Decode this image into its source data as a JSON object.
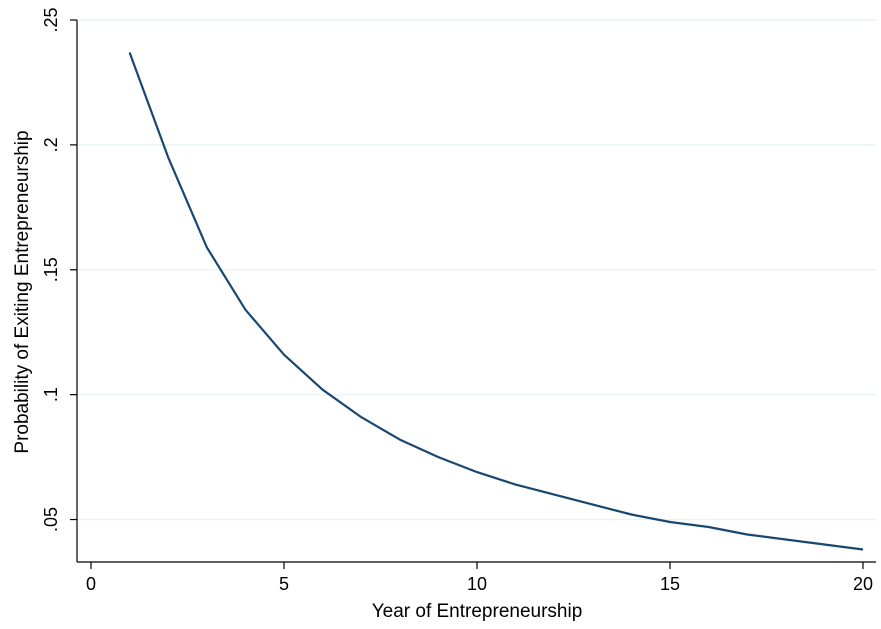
{
  "chart_data": {
    "type": "line",
    "title": "",
    "xlabel": "Year of Entrepreneurship",
    "ylabel": "Probability of Exiting Entrepreneurship",
    "xlim": [
      0,
      20
    ],
    "ylim": [
      0.033,
      0.25
    ],
    "x_ticks": [
      0,
      5,
      10,
      15,
      20
    ],
    "x_tick_labels": [
      "0",
      "5",
      "10",
      "15",
      "20"
    ],
    "y_ticks": [
      0.05,
      0.1,
      0.15,
      0.2,
      0.25
    ],
    "y_tick_labels": [
      ".05",
      ".1",
      ".15",
      ".2",
      ".25"
    ],
    "grid": "horizontal",
    "line_color": "#1a476f",
    "grid_color": "#eaf2f3",
    "x": [
      1,
      2,
      3,
      4,
      5,
      6,
      7,
      8,
      9,
      10,
      11,
      12,
      13,
      14,
      15,
      16,
      17,
      18,
      19,
      20
    ],
    "series": [
      {
        "values": [
          0.237,
          0.195,
          0.159,
          0.134,
          0.116,
          0.102,
          0.091,
          0.082,
          0.075,
          0.069,
          0.064,
          0.06,
          0.056,
          0.052,
          0.049,
          0.047,
          0.044,
          0.042,
          0.04,
          0.038
        ]
      }
    ]
  }
}
